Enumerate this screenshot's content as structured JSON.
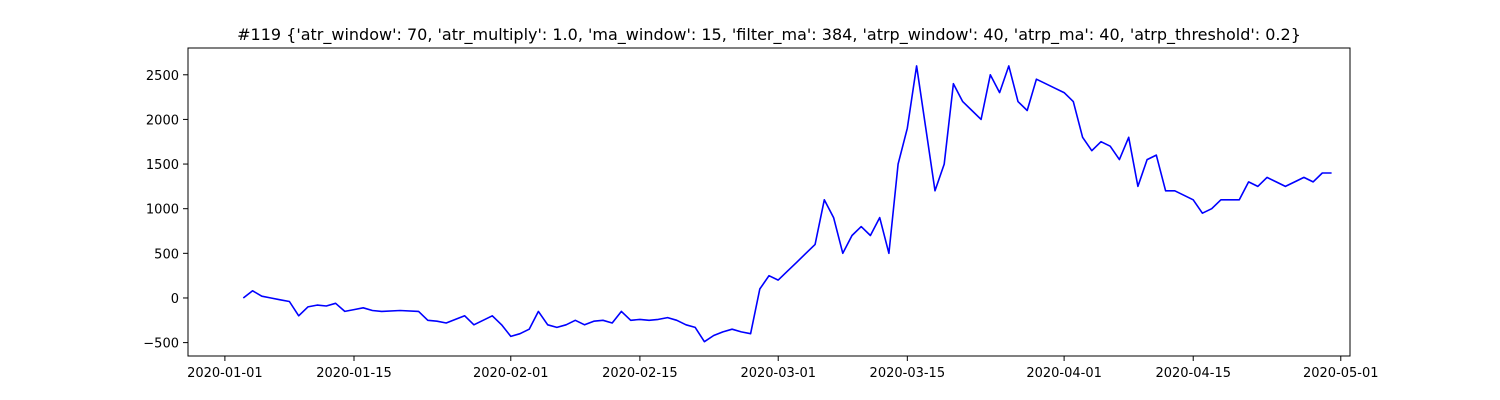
{
  "chart_data": {
    "type": "line",
    "title": "#119 {'atr_window': 70, 'atr_multiply': 1.0, 'ma_window': 15, 'filter_ma': 384, 'atrp_window': 40, 'atrp_ma': 40, 'atrp_threshold': 0.2}",
    "xlabel": "",
    "ylabel": "",
    "x_axis_type": "date",
    "xlim": [
      "2019-12-28",
      "2020-05-02"
    ],
    "ylim": [
      -650,
      2800
    ],
    "x_ticks": [
      "2020-01-01",
      "2020-01-15",
      "2020-02-01",
      "2020-02-15",
      "2020-03-01",
      "2020-03-15",
      "2020-04-01",
      "2020-04-15",
      "2020-05-01"
    ],
    "y_ticks": [
      -500,
      0,
      500,
      1000,
      1500,
      2000,
      2500
    ],
    "grid": false,
    "line_color": "#0000ff",
    "series": [
      {
        "x": [
          "2020-01-03",
          "2020-01-04",
          "2020-01-05",
          "2020-01-06",
          "2020-01-07",
          "2020-01-08",
          "2020-01-09",
          "2020-01-10",
          "2020-01-11",
          "2020-01-12",
          "2020-01-13",
          "2020-01-14",
          "2020-01-15",
          "2020-01-16",
          "2020-01-17",
          "2020-01-18",
          "2020-01-20",
          "2020-01-22",
          "2020-01-23",
          "2020-01-24",
          "2020-01-25",
          "2020-01-26",
          "2020-01-27",
          "2020-01-28",
          "2020-01-29",
          "2020-01-30",
          "2020-01-31",
          "2020-02-01",
          "2020-02-02",
          "2020-02-03",
          "2020-02-04",
          "2020-02-05",
          "2020-02-06",
          "2020-02-07",
          "2020-02-08",
          "2020-02-09",
          "2020-02-10",
          "2020-02-11",
          "2020-02-12",
          "2020-02-13",
          "2020-02-14",
          "2020-02-15",
          "2020-02-16",
          "2020-02-17",
          "2020-02-18",
          "2020-02-19",
          "2020-02-20",
          "2020-02-21",
          "2020-02-22",
          "2020-02-23",
          "2020-02-24",
          "2020-02-25",
          "2020-02-26",
          "2020-02-27",
          "2020-02-28",
          "2020-02-29",
          "2020-03-01",
          "2020-03-02",
          "2020-03-03",
          "2020-03-04",
          "2020-03-05",
          "2020-03-06",
          "2020-03-07",
          "2020-03-08",
          "2020-03-09",
          "2020-03-10",
          "2020-03-11",
          "2020-03-12",
          "2020-03-13",
          "2020-03-14",
          "2020-03-15",
          "2020-03-16",
          "2020-03-17",
          "2020-03-18",
          "2020-03-19",
          "2020-03-20",
          "2020-03-21",
          "2020-03-22",
          "2020-03-23",
          "2020-03-24",
          "2020-03-25",
          "2020-03-26",
          "2020-03-27",
          "2020-03-28",
          "2020-03-29",
          "2020-03-30",
          "2020-03-31",
          "2020-04-01",
          "2020-04-02",
          "2020-04-03",
          "2020-04-04",
          "2020-04-05",
          "2020-04-06",
          "2020-04-07",
          "2020-04-08",
          "2020-04-09",
          "2020-04-10",
          "2020-04-11",
          "2020-04-12",
          "2020-04-13",
          "2020-04-14",
          "2020-04-15",
          "2020-04-16",
          "2020-04-17",
          "2020-04-18",
          "2020-04-19",
          "2020-04-20",
          "2020-04-21",
          "2020-04-22",
          "2020-04-23",
          "2020-04-24",
          "2020-04-25",
          "2020-04-26",
          "2020-04-27",
          "2020-04-28",
          "2020-04-29",
          "2020-04-30"
        ],
        "values": [
          0,
          80,
          20,
          0,
          -20,
          -40,
          -200,
          -100,
          -80,
          -90,
          -60,
          -150,
          -130,
          -110,
          -140,
          -150,
          -140,
          -150,
          -250,
          -260,
          -280,
          -240,
          -200,
          -300,
          -250,
          -200,
          -300,
          -430,
          -400,
          -350,
          -150,
          -300,
          -330,
          -300,
          -250,
          -300,
          -260,
          -250,
          -280,
          -150,
          -250,
          -240,
          -250,
          -240,
          -220,
          -250,
          -300,
          -330,
          -490,
          -420,
          -380,
          -350,
          -380,
          -400,
          100,
          250,
          200,
          300,
          400,
          500,
          600,
          1100,
          900,
          500,
          700,
          800,
          700,
          900,
          500,
          1500,
          1900,
          2600,
          1900,
          1200,
          1500,
          2400,
          2200,
          2100,
          2000,
          2500,
          2300,
          2600,
          2200,
          2100,
          2450,
          2400,
          2350,
          2300,
          2200,
          1800,
          1650,
          1750,
          1700,
          1550,
          1800,
          1250,
          1550,
          1600,
          1200,
          1200,
          1150,
          1100,
          950,
          1000,
          1100,
          1100,
          1100,
          1300,
          1250,
          1350,
          1300,
          1250,
          1300,
          1350,
          1300,
          1400,
          1400
        ]
      }
    ]
  }
}
